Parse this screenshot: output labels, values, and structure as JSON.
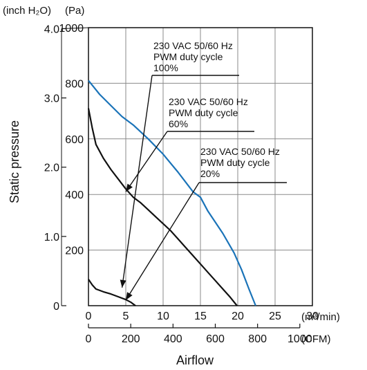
{
  "chart_data": {
    "type": "line",
    "xlabel": "Airflow",
    "ylabel": "Static pressure",
    "x_unit_primary": "(m³/min)",
    "x_unit_secondary": "(CFM)",
    "y_unit_left": "(inch H₂O)",
    "y_unit_right": "(Pa)",
    "xlim": [
      0,
      30
    ],
    "ylim": [
      0,
      1000
    ],
    "grid": true,
    "x_ticks_m3min": [
      "0",
      "5",
      "10",
      "15",
      "20",
      "25",
      "30"
    ],
    "x_ticks_cfm": [
      "0",
      "200",
      "400",
      "600",
      "800",
      "1000"
    ],
    "y_ticks_pa": [
      "200",
      "400",
      "600",
      "800",
      "1000"
    ],
    "y_ticks_inh2o": [
      "0",
      "1.0",
      "2.0",
      "3.0",
      "4.0"
    ],
    "series": [
      {
        "color": "#1a73b8",
        "points": [
          [
            0,
            810
          ],
          [
            1.5,
            760
          ],
          [
            3,
            720
          ],
          [
            4.5,
            680
          ],
          [
            6,
            650
          ],
          [
            8,
            600
          ],
          [
            10,
            545
          ],
          [
            12,
            480
          ],
          [
            14,
            410
          ],
          [
            15,
            390
          ],
          [
            16,
            340
          ],
          [
            18,
            260
          ],
          [
            19.5,
            190
          ],
          [
            20.5,
            130
          ],
          [
            21.5,
            60
          ],
          [
            22.4,
            0
          ]
        ]
      },
      {
        "color": "#111111",
        "points": [
          [
            0,
            710
          ],
          [
            0.5,
            640
          ],
          [
            1,
            580
          ],
          [
            2,
            530
          ],
          [
            3,
            490
          ],
          [
            4,
            455
          ],
          [
            5,
            420
          ],
          [
            6,
            390
          ],
          [
            7,
            370
          ],
          [
            8,
            345
          ],
          [
            9,
            320
          ],
          [
            10,
            295
          ],
          [
            11,
            270
          ],
          [
            12,
            240
          ],
          [
            13,
            210
          ],
          [
            14,
            180
          ],
          [
            15,
            150
          ],
          [
            16,
            120
          ],
          [
            17,
            90
          ],
          [
            18,
            60
          ],
          [
            19,
            30
          ],
          [
            19.9,
            0
          ]
        ]
      },
      {
        "color": "#111111",
        "points": [
          [
            0,
            95
          ],
          [
            0.5,
            75
          ],
          [
            1,
            60
          ],
          [
            2,
            50
          ],
          [
            3,
            42
          ],
          [
            4,
            32
          ],
          [
            5,
            22
          ],
          [
            5.7,
            12
          ],
          [
            6.3,
            0
          ]
        ]
      }
    ],
    "annotations": [
      {
        "lines": [
          "230 VAC  50/60 Hz",
          "PWM duty cycle",
          "100%"
        ],
        "target": [
          4.5,
          65
        ]
      },
      {
        "lines": [
          "230 VAC  50/60 Hz",
          "PWM duty cycle",
          "60%"
        ],
        "target": [
          5,
          410
        ]
      },
      {
        "lines": [
          "230 VAC  50/60 Hz",
          "PWM duty cycle",
          "20%"
        ],
        "target": [
          5,
          20
        ]
      }
    ]
  }
}
